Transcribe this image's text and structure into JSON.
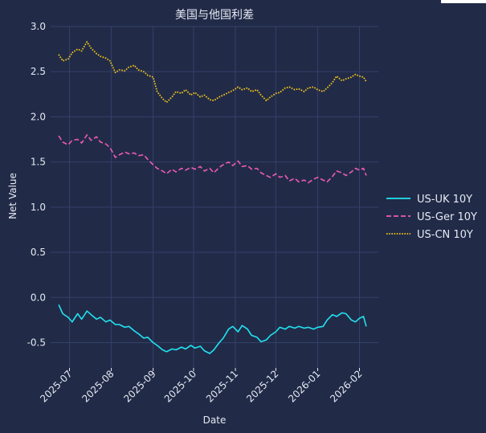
{
  "chart_data": {
    "type": "line",
    "title": "美国与他国利差",
    "xlabel": "Date",
    "ylabel": "Net Value",
    "xlim": [
      "2025-06-17",
      "2026-02-15"
    ],
    "ylim": [
      -0.78,
      3.0
    ],
    "yticks": [
      "-0.5",
      "0.0",
      "0.5",
      "1.0",
      "1.5",
      "2.0",
      "2.5",
      "3.0"
    ],
    "xticks": [
      {
        "date": "2025-07-01",
        "label": "2025-07"
      },
      {
        "date": "2025-08-01",
        "label": "2025-08"
      },
      {
        "date": "2025-09-01",
        "label": "2025-09"
      },
      {
        "date": "2025-10-01",
        "label": "2025-10"
      },
      {
        "date": "2025-11-01",
        "label": "2025-11"
      },
      {
        "date": "2025-12-01",
        "label": "2025-12"
      },
      {
        "date": "2026-01-01",
        "label": "2026-01"
      },
      {
        "date": "2026-02-01",
        "label": "2026-02"
      }
    ],
    "grid": true,
    "legend_position": "right",
    "series": [
      {
        "name": "US-UK 10Y",
        "color": "#22e3f0",
        "dash": "solid",
        "points": [
          [
            "2025-06-23",
            -0.08
          ],
          [
            "2025-06-26",
            -0.18
          ],
          [
            "2025-06-30",
            -0.22
          ],
          [
            "2025-07-03",
            -0.27
          ],
          [
            "2025-07-07",
            -0.18
          ],
          [
            "2025-07-10",
            -0.24
          ],
          [
            "2025-07-14",
            -0.15
          ],
          [
            "2025-07-17",
            -0.19
          ],
          [
            "2025-07-21",
            -0.24
          ],
          [
            "2025-07-24",
            -0.22
          ],
          [
            "2025-07-28",
            -0.27
          ],
          [
            "2025-07-31",
            -0.25
          ],
          [
            "2025-08-04",
            -0.3
          ],
          [
            "2025-08-07",
            -0.3
          ],
          [
            "2025-08-11",
            -0.33
          ],
          [
            "2025-08-14",
            -0.32
          ],
          [
            "2025-08-18",
            -0.37
          ],
          [
            "2025-08-21",
            -0.4
          ],
          [
            "2025-08-25",
            -0.45
          ],
          [
            "2025-08-28",
            -0.44
          ],
          [
            "2025-09-01",
            -0.5
          ],
          [
            "2025-09-04",
            -0.53
          ],
          [
            "2025-09-08",
            -0.58
          ],
          [
            "2025-09-11",
            -0.6
          ],
          [
            "2025-09-15",
            -0.57
          ],
          [
            "2025-09-18",
            -0.58
          ],
          [
            "2025-09-22",
            -0.55
          ],
          [
            "2025-09-25",
            -0.57
          ],
          [
            "2025-09-29",
            -0.53
          ],
          [
            "2025-10-02",
            -0.56
          ],
          [
            "2025-10-06",
            -0.54
          ],
          [
            "2025-10-09",
            -0.59
          ],
          [
            "2025-10-13",
            -0.62
          ],
          [
            "2025-10-16",
            -0.58
          ],
          [
            "2025-10-20",
            -0.5
          ],
          [
            "2025-10-23",
            -0.45
          ],
          [
            "2025-10-27",
            -0.35
          ],
          [
            "2025-10-30",
            -0.32
          ],
          [
            "2025-11-03",
            -0.38
          ],
          [
            "2025-11-06",
            -0.31
          ],
          [
            "2025-11-10",
            -0.35
          ],
          [
            "2025-11-13",
            -0.42
          ],
          [
            "2025-11-17",
            -0.44
          ],
          [
            "2025-11-20",
            -0.49
          ],
          [
            "2025-11-24",
            -0.47
          ],
          [
            "2025-11-27",
            -0.42
          ],
          [
            "2025-12-01",
            -0.38
          ],
          [
            "2025-12-04",
            -0.33
          ],
          [
            "2025-12-08",
            -0.35
          ],
          [
            "2025-12-11",
            -0.32
          ],
          [
            "2025-12-15",
            -0.34
          ],
          [
            "2025-12-18",
            -0.32
          ],
          [
            "2025-12-22",
            -0.34
          ],
          [
            "2025-12-25",
            -0.33
          ],
          [
            "2025-12-29",
            -0.35
          ],
          [
            "2026-01-01",
            -0.33
          ],
          [
            "2026-01-05",
            -0.32
          ],
          [
            "2026-01-08",
            -0.25
          ],
          [
            "2026-01-12",
            -0.19
          ],
          [
            "2026-01-15",
            -0.21
          ],
          [
            "2026-01-19",
            -0.17
          ],
          [
            "2026-01-22",
            -0.18
          ],
          [
            "2026-01-26",
            -0.25
          ],
          [
            "2026-01-29",
            -0.27
          ],
          [
            "2026-02-01",
            -0.23
          ],
          [
            "2026-02-04",
            -0.21
          ],
          [
            "2026-02-06",
            -0.32
          ]
        ]
      },
      {
        "name": "US-Ger 10Y",
        "color": "#f05ab4",
        "dash": "dashed",
        "points": [
          [
            "2025-06-23",
            1.79
          ],
          [
            "2025-06-26",
            1.72
          ],
          [
            "2025-06-30",
            1.69
          ],
          [
            "2025-07-03",
            1.74
          ],
          [
            "2025-07-07",
            1.75
          ],
          [
            "2025-07-10",
            1.71
          ],
          [
            "2025-07-14",
            1.8
          ],
          [
            "2025-07-17",
            1.74
          ],
          [
            "2025-07-21",
            1.78
          ],
          [
            "2025-07-24",
            1.72
          ],
          [
            "2025-07-28",
            1.7
          ],
          [
            "2025-07-31",
            1.66
          ],
          [
            "2025-08-04",
            1.55
          ],
          [
            "2025-08-07",
            1.58
          ],
          [
            "2025-08-11",
            1.61
          ],
          [
            "2025-08-14",
            1.59
          ],
          [
            "2025-08-18",
            1.6
          ],
          [
            "2025-08-21",
            1.57
          ],
          [
            "2025-08-25",
            1.58
          ],
          [
            "2025-08-28",
            1.53
          ],
          [
            "2025-09-01",
            1.47
          ],
          [
            "2025-09-04",
            1.43
          ],
          [
            "2025-09-08",
            1.4
          ],
          [
            "2025-09-11",
            1.37
          ],
          [
            "2025-09-15",
            1.42
          ],
          [
            "2025-09-18",
            1.39
          ],
          [
            "2025-09-22",
            1.43
          ],
          [
            "2025-09-25",
            1.41
          ],
          [
            "2025-09-29",
            1.44
          ],
          [
            "2025-10-02",
            1.42
          ],
          [
            "2025-10-06",
            1.45
          ],
          [
            "2025-10-09",
            1.4
          ],
          [
            "2025-10-13",
            1.43
          ],
          [
            "2025-10-16",
            1.38
          ],
          [
            "2025-10-20",
            1.44
          ],
          [
            "2025-10-23",
            1.47
          ],
          [
            "2025-10-27",
            1.5
          ],
          [
            "2025-10-30",
            1.46
          ],
          [
            "2025-11-03",
            1.51
          ],
          [
            "2025-11-06",
            1.45
          ],
          [
            "2025-11-10",
            1.46
          ],
          [
            "2025-11-13",
            1.42
          ],
          [
            "2025-11-17",
            1.43
          ],
          [
            "2025-11-20",
            1.38
          ],
          [
            "2025-11-24",
            1.35
          ],
          [
            "2025-11-27",
            1.33
          ],
          [
            "2025-12-01",
            1.37
          ],
          [
            "2025-12-04",
            1.33
          ],
          [
            "2025-12-08",
            1.35
          ],
          [
            "2025-12-11",
            1.29
          ],
          [
            "2025-12-15",
            1.32
          ],
          [
            "2025-12-18",
            1.28
          ],
          [
            "2025-12-22",
            1.3
          ],
          [
            "2025-12-25",
            1.27
          ],
          [
            "2025-12-29",
            1.31
          ],
          [
            "2026-01-01",
            1.33
          ],
          [
            "2026-01-05",
            1.3
          ],
          [
            "2026-01-08",
            1.28
          ],
          [
            "2026-01-12",
            1.34
          ],
          [
            "2026-01-15",
            1.4
          ],
          [
            "2026-01-19",
            1.38
          ],
          [
            "2026-01-22",
            1.35
          ],
          [
            "2026-01-26",
            1.39
          ],
          [
            "2026-01-29",
            1.43
          ],
          [
            "2026-02-01",
            1.41
          ],
          [
            "2026-02-04",
            1.43
          ],
          [
            "2026-02-06",
            1.35
          ]
        ]
      },
      {
        "name": "US-CN 10Y",
        "color": "#f5c518",
        "dash": "dotted",
        "points": [
          [
            "2025-06-23",
            2.69
          ],
          [
            "2025-06-26",
            2.62
          ],
          [
            "2025-06-30",
            2.64
          ],
          [
            "2025-07-03",
            2.71
          ],
          [
            "2025-07-07",
            2.75
          ],
          [
            "2025-07-10",
            2.73
          ],
          [
            "2025-07-14",
            2.83
          ],
          [
            "2025-07-17",
            2.76
          ],
          [
            "2025-07-21",
            2.7
          ],
          [
            "2025-07-24",
            2.67
          ],
          [
            "2025-07-28",
            2.65
          ],
          [
            "2025-07-31",
            2.62
          ],
          [
            "2025-08-04",
            2.49
          ],
          [
            "2025-08-07",
            2.52
          ],
          [
            "2025-08-11",
            2.51
          ],
          [
            "2025-08-14",
            2.55
          ],
          [
            "2025-08-18",
            2.57
          ],
          [
            "2025-08-21",
            2.52
          ],
          [
            "2025-08-25",
            2.5
          ],
          [
            "2025-08-28",
            2.46
          ],
          [
            "2025-09-01",
            2.44
          ],
          [
            "2025-09-04",
            2.28
          ],
          [
            "2025-09-08",
            2.2
          ],
          [
            "2025-09-11",
            2.16
          ],
          [
            "2025-09-15",
            2.22
          ],
          [
            "2025-09-18",
            2.28
          ],
          [
            "2025-09-22",
            2.26
          ],
          [
            "2025-09-25",
            2.3
          ],
          [
            "2025-09-29",
            2.24
          ],
          [
            "2025-10-02",
            2.27
          ],
          [
            "2025-10-06",
            2.22
          ],
          [
            "2025-10-09",
            2.24
          ],
          [
            "2025-10-13",
            2.19
          ],
          [
            "2025-10-16",
            2.18
          ],
          [
            "2025-10-20",
            2.22
          ],
          [
            "2025-10-23",
            2.24
          ],
          [
            "2025-10-27",
            2.27
          ],
          [
            "2025-10-30",
            2.29
          ],
          [
            "2025-11-03",
            2.33
          ],
          [
            "2025-11-06",
            2.3
          ],
          [
            "2025-11-10",
            2.32
          ],
          [
            "2025-11-13",
            2.28
          ],
          [
            "2025-11-17",
            2.3
          ],
          [
            "2025-11-20",
            2.24
          ],
          [
            "2025-11-24",
            2.18
          ],
          [
            "2025-11-27",
            2.22
          ],
          [
            "2025-12-01",
            2.26
          ],
          [
            "2025-12-04",
            2.27
          ],
          [
            "2025-12-08",
            2.32
          ],
          [
            "2025-12-11",
            2.33
          ],
          [
            "2025-12-15",
            2.3
          ],
          [
            "2025-12-18",
            2.31
          ],
          [
            "2025-12-22",
            2.28
          ],
          [
            "2025-12-25",
            2.32
          ],
          [
            "2025-12-29",
            2.33
          ],
          [
            "2026-01-01",
            2.3
          ],
          [
            "2026-01-05",
            2.28
          ],
          [
            "2026-01-08",
            2.32
          ],
          [
            "2026-01-12",
            2.38
          ],
          [
            "2026-01-15",
            2.45
          ],
          [
            "2026-01-19",
            2.4
          ],
          [
            "2026-01-22",
            2.42
          ],
          [
            "2026-01-26",
            2.44
          ],
          [
            "2026-01-29",
            2.47
          ],
          [
            "2026-02-01",
            2.45
          ],
          [
            "2026-02-04",
            2.44
          ],
          [
            "2026-02-06",
            2.39
          ]
        ]
      }
    ]
  }
}
